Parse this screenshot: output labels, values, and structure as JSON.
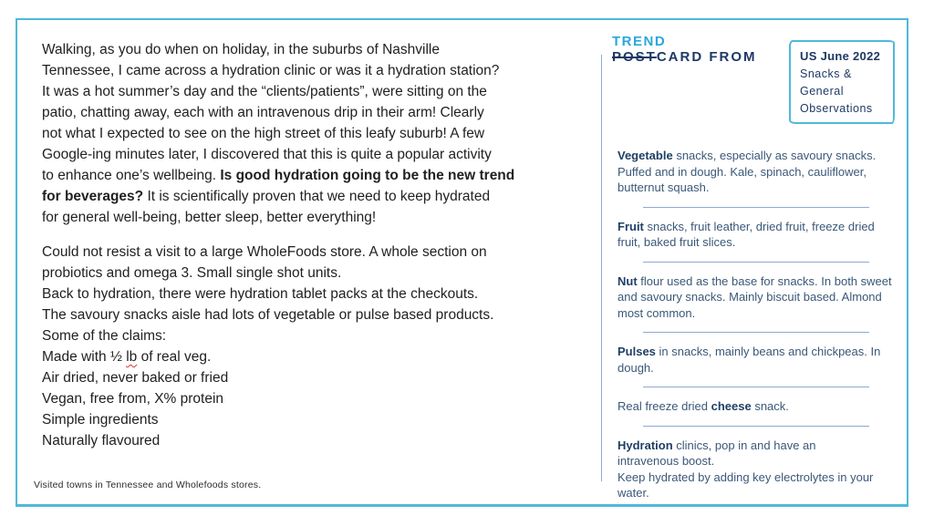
{
  "logo": {
    "trend": "TREND",
    "post": "POST",
    "card_from": "CARD FROM"
  },
  "stamp": {
    "title": "US June 2022",
    "lines": [
      "Snacks &",
      "General",
      "Observations"
    ]
  },
  "main": {
    "paragraphs": [
      [
        [
          {
            "t": "Walking, as you do when on holiday, in the suburbs of Nashville"
          }
        ],
        [
          {
            "t": "Tennessee, I came across a hydration clinic or was it a hydration station?"
          }
        ],
        [
          {
            "t": "It was a hot summer’s day and the “clients/patients”, were sitting on the"
          }
        ],
        [
          {
            "t": "patio, chatting away, each with an intravenous drip in their arm! Clearly"
          }
        ],
        [
          {
            "t": "not what I expected to see on the high street of this leafy suburb! A few"
          }
        ],
        [
          {
            "t": "Google-ing minutes later, I discovered that this is quite a popular activity"
          }
        ],
        [
          {
            "t": "to enhance one’s wellbeing. "
          },
          {
            "t": "Is good hydration going to be the new trend",
            "b": true
          }
        ],
        [
          {
            "t": "for beverages?",
            "b": true
          },
          {
            "t": " It is scientifically proven that we need to keep hydrated"
          }
        ],
        [
          {
            "t": "for general well-being, better sleep, better everything!"
          }
        ]
      ],
      [
        [
          {
            "t": "Could not resist a visit to a large WholeFoods store. A whole section on"
          }
        ],
        [
          {
            "t": "probiotics and omega 3. Small single shot units."
          }
        ],
        [
          {
            "t": "Back to hydration, there were hydration tablet packs at the checkouts."
          }
        ],
        [
          {
            "t": "The savoury snacks aisle had lots of vegetable or pulse based products."
          }
        ],
        [
          {
            "t": "Some of the claims:"
          }
        ],
        [
          {
            "t": "Made with ½ "
          },
          {
            "t": "lb",
            "sq": true
          },
          {
            "t": " of real veg."
          }
        ],
        [
          {
            "t": "Air dried, never baked or fried"
          }
        ],
        [
          {
            "t": "Vegan, free from, X% protein"
          }
        ],
        [
          {
            "t": "Simple ingredients"
          }
        ],
        [
          {
            "t": "Naturally flavoured"
          }
        ]
      ]
    ],
    "footnote": "Visited towns in Tennessee and Wholefoods stores."
  },
  "sidebar": {
    "entries": [
      {
        "segments": [
          {
            "t": "Vegetable",
            "b": true
          },
          {
            "t": " snacks, especially as savoury snacks. Puffed and in dough. Kale, spinach, cauliflower, butternut squash."
          }
        ]
      },
      {
        "segments": [
          {
            "t": "Fruit",
            "b": true
          },
          {
            "t": " snacks, fruit leather, dried fruit, freeze dried fruit, baked fruit slices."
          }
        ]
      },
      {
        "segments": [
          {
            "t": "Nut",
            "b": true
          },
          {
            "t": " flour used as the base for snacks. In both sweet and savoury snacks. Mainly biscuit based. Almond most common."
          }
        ]
      },
      {
        "segments": [
          {
            "t": "Pulses",
            "b": true
          },
          {
            "t": " in snacks, mainly beans and chickpeas. In dough."
          }
        ]
      },
      {
        "segments": [
          {
            "t": "Real freeze dried "
          },
          {
            "t": "cheese",
            "b": true
          },
          {
            "t": " snack."
          }
        ]
      },
      {
        "segments": [
          {
            "t": "Hydration",
            "b": true
          },
          {
            "t": " clinics, pop in and have an\nintravenous boost.\nKeep hydrated by adding key electrolytes in your water."
          }
        ]
      }
    ]
  },
  "colors": {
    "card_border_cyan": "#50b8d9",
    "logo_cyan": "#2aa7dd",
    "navy": "#1f3864",
    "sidebar_text": "#3a5878",
    "divider_rule": "#8ea9d2",
    "body_ink": "#212121",
    "spellcheck_red": "#d9342b"
  }
}
